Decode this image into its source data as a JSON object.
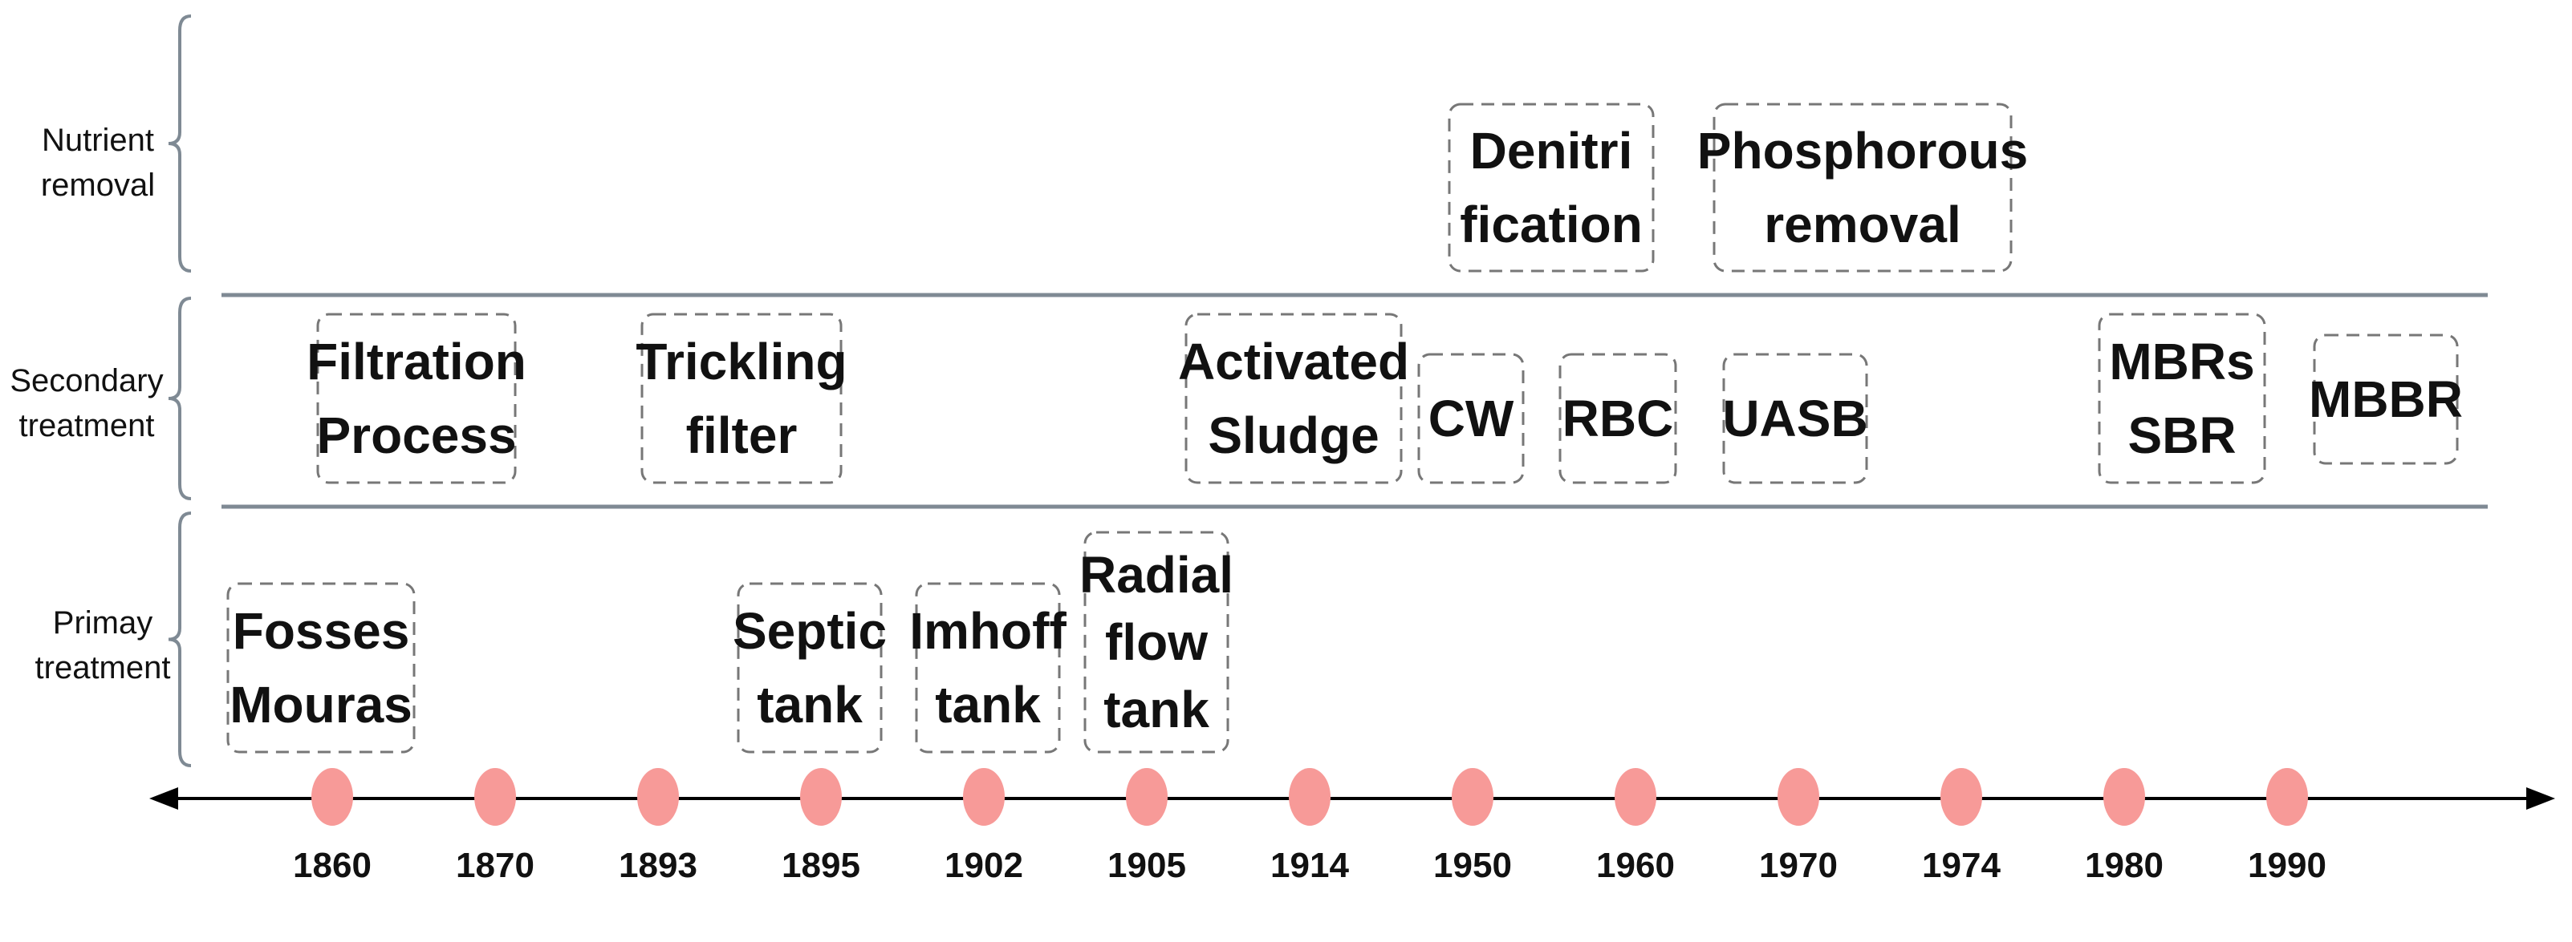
{
  "colors": {
    "dot": "#f79a98",
    "separator": "#7f8a94",
    "box_border": "#777777",
    "text": "#111111",
    "axis": "#000000"
  },
  "categories": [
    {
      "id": "nutrient",
      "lines": [
        "Nutrient",
        "removal"
      ]
    },
    {
      "id": "secondary",
      "lines": [
        "Secondary",
        "treatment"
      ]
    },
    {
      "id": "primary",
      "lines": [
        "Primay",
        "treatment"
      ]
    }
  ],
  "years": [
    "1860",
    "1870",
    "1893",
    "1895",
    "1902",
    "1905",
    "1914",
    "1950",
    "1960",
    "1970",
    "1974",
    "1980",
    "1990"
  ],
  "boxes": [
    {
      "id": "denitrification",
      "category": "nutrient",
      "lines": [
        "Denitri",
        "fication"
      ]
    },
    {
      "id": "phosphorous-removal",
      "category": "nutrient",
      "lines": [
        "Phosphorous",
        "removal"
      ]
    },
    {
      "id": "filtration-process",
      "category": "secondary",
      "lines": [
        "Filtration",
        "Process"
      ]
    },
    {
      "id": "trickling-filter",
      "category": "secondary",
      "lines": [
        "Trickling",
        "filter"
      ]
    },
    {
      "id": "activated-sludge",
      "category": "secondary",
      "lines": [
        "Activated",
        "Sludge"
      ]
    },
    {
      "id": "cw",
      "category": "secondary",
      "lines": [
        "CW"
      ]
    },
    {
      "id": "rbc",
      "category": "secondary",
      "lines": [
        "RBC"
      ]
    },
    {
      "id": "uasb",
      "category": "secondary",
      "lines": [
        "UASB"
      ]
    },
    {
      "id": "mbrs-sbr",
      "category": "secondary",
      "lines": [
        "MBRs",
        "SBR"
      ]
    },
    {
      "id": "mbbr",
      "category": "secondary",
      "lines": [
        "MBBR"
      ]
    },
    {
      "id": "fosses-mouras",
      "category": "primary",
      "lines": [
        "Fosses",
        "Mouras"
      ]
    },
    {
      "id": "septic-tank",
      "category": "primary",
      "lines": [
        "Septic",
        "tank"
      ]
    },
    {
      "id": "imhoff-tank",
      "category": "primary",
      "lines": [
        "Imhoff",
        "tank"
      ]
    },
    {
      "id": "radial-flow-tank",
      "category": "primary",
      "lines": [
        "Radial",
        "flow",
        "tank"
      ]
    }
  ]
}
